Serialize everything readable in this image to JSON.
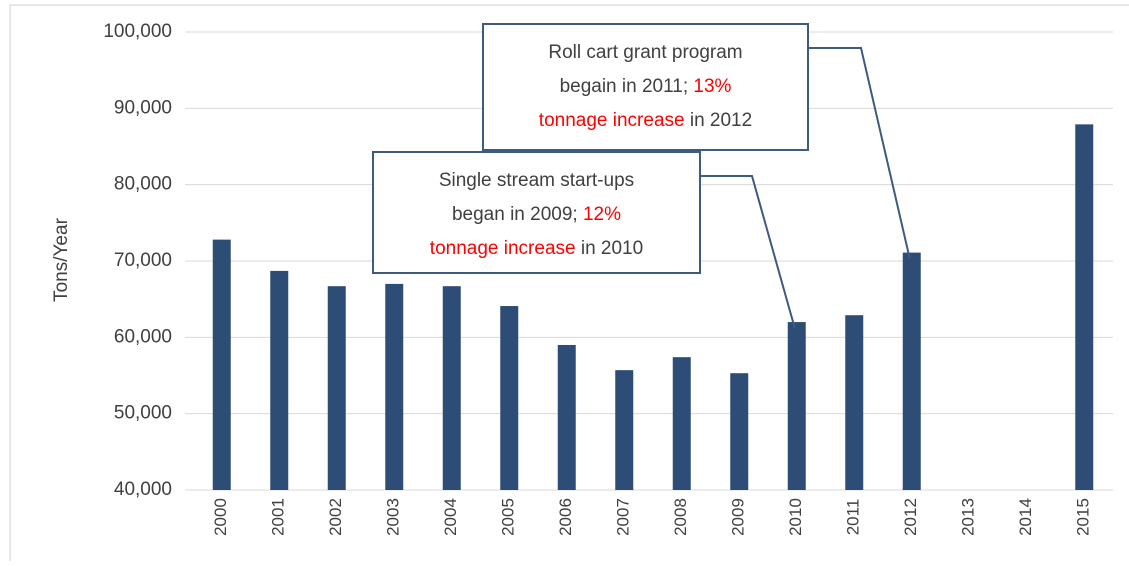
{
  "chart_data": {
    "type": "bar",
    "y_label": "Tons/Year",
    "categories": [
      "2000",
      "2001",
      "2002",
      "2003",
      "2004",
      "2005",
      "2006",
      "2007",
      "2008",
      "2009",
      "2010",
      "2011",
      "2012",
      "2013",
      "2014",
      "2015"
    ],
    "values": [
      72800,
      68700,
      66700,
      67000,
      66700,
      64100,
      59000,
      55700,
      57400,
      55300,
      62000,
      62900,
      71100,
      null,
      null,
      87900
    ],
    "color": "#2e4d76",
    "ylim": [
      40000,
      100000
    ],
    "yticks": [
      {
        "value": 40000,
        "label": "40,000"
      },
      {
        "value": 50000,
        "label": "50,000"
      },
      {
        "value": 60000,
        "label": "60,000"
      },
      {
        "value": 70000,
        "label": "70,000"
      },
      {
        "value": 80000,
        "label": "80,000"
      },
      {
        "value": 90000,
        "label": "90,000"
      },
      {
        "value": 100000,
        "label": "100,000"
      }
    ],
    "grid": true,
    "annotations": [
      {
        "category": "2012",
        "lines": [
          [
            {
              "text": "Roll cart grant program",
              "color": "#404040"
            }
          ],
          [
            {
              "text": "begain in 2011; ",
              "color": "#404040"
            },
            {
              "text": "13%",
              "color": "#ff0000"
            }
          ],
          [
            {
              "text": "tonnage increase",
              "color": "#ff0000"
            },
            {
              "text": " in 2012",
              "color": "#404040"
            }
          ]
        ]
      },
      {
        "category": "2010",
        "lines": [
          [
            {
              "text": "Single stream start-ups",
              "color": "#404040"
            }
          ],
          [
            {
              "text": "began in 2009; ",
              "color": "#404040"
            },
            {
              "text": "12%",
              "color": "#ff0000"
            }
          ],
          [
            {
              "text": "tonnage increase",
              "color": "#ff0000"
            },
            {
              "text": " in 2010",
              "color": "#404040"
            }
          ]
        ]
      }
    ]
  }
}
